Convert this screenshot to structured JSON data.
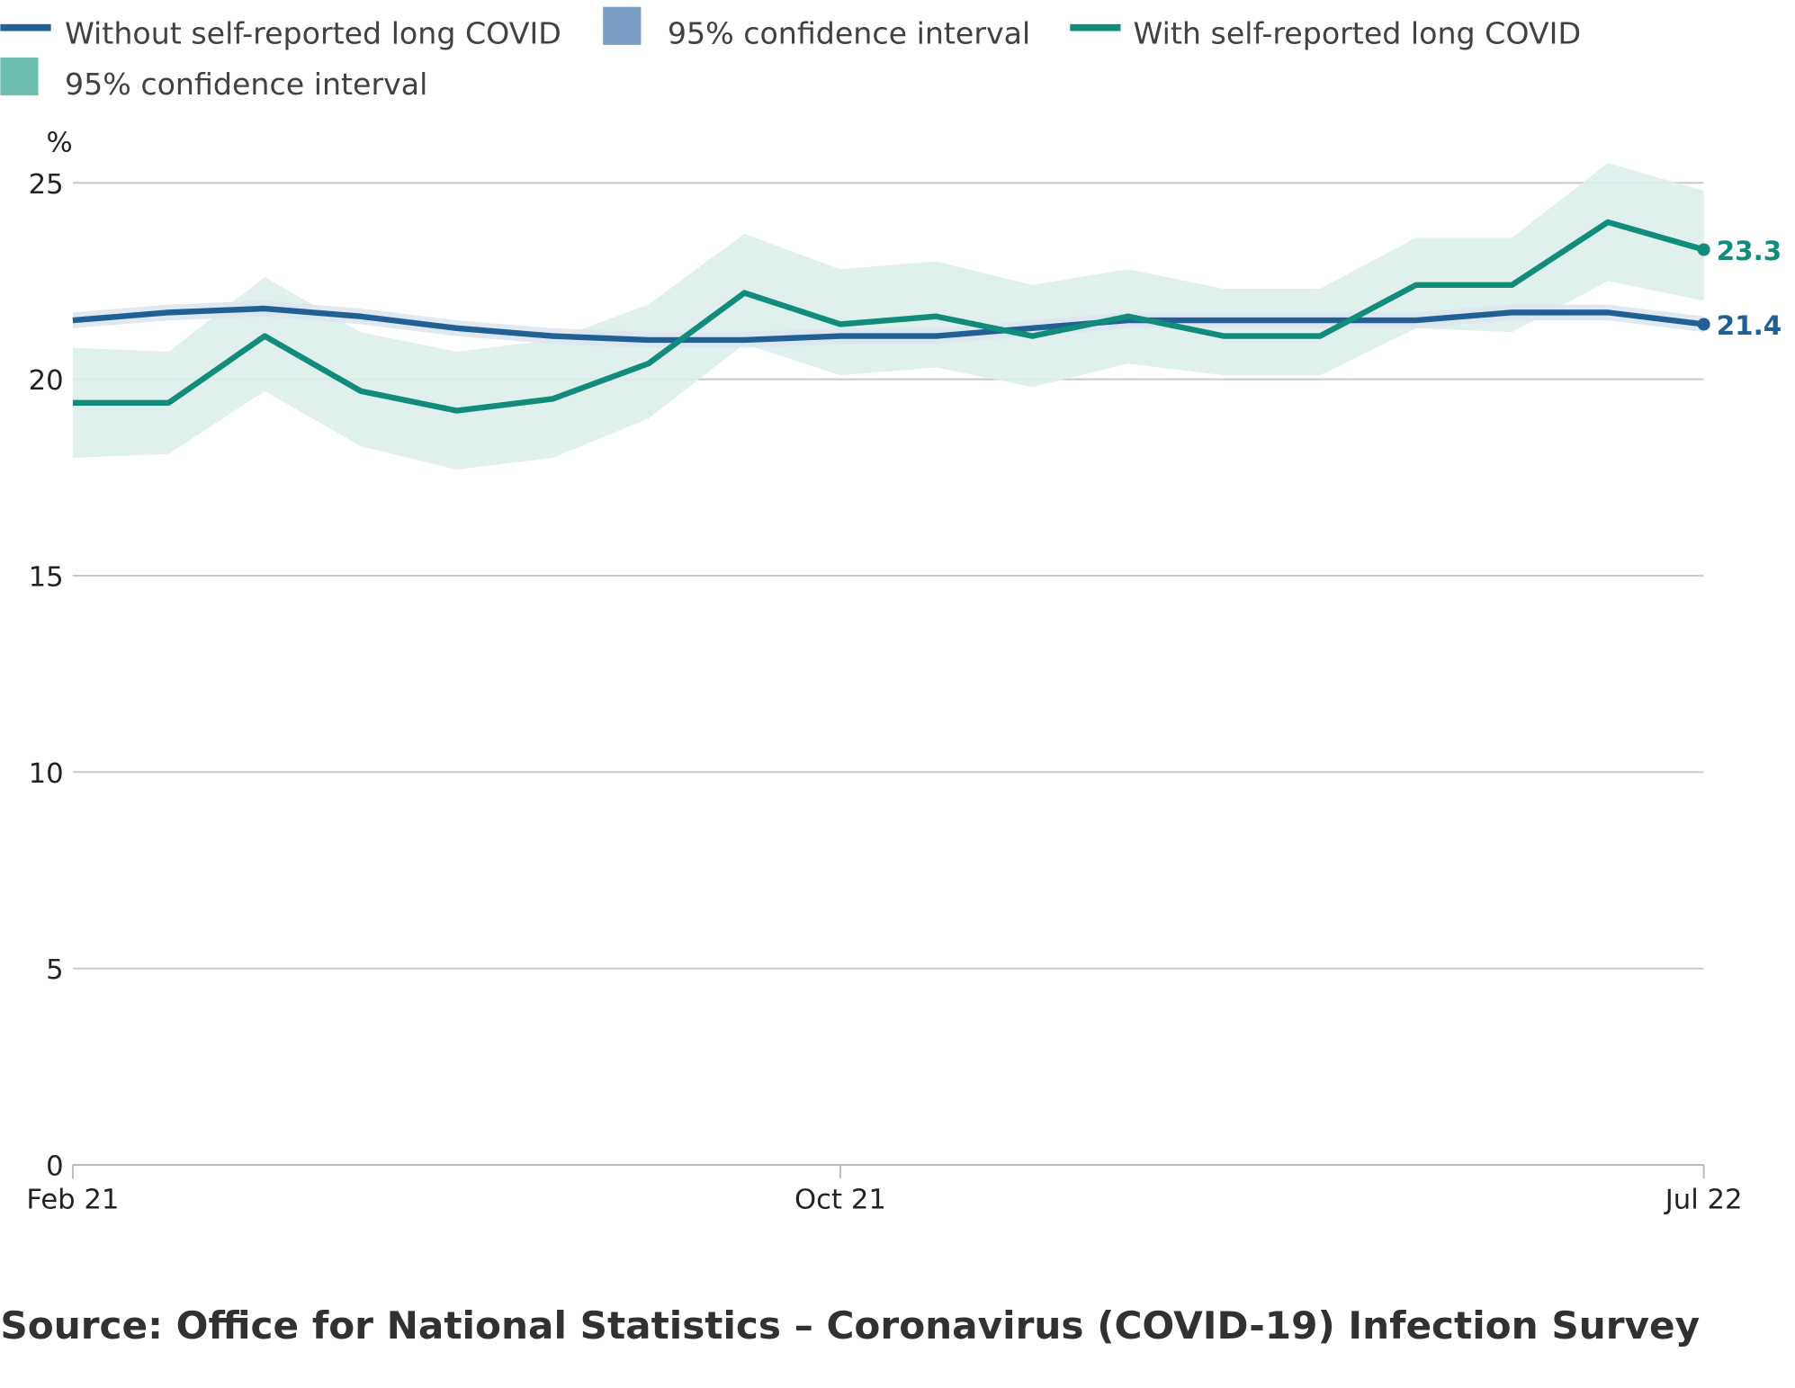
{
  "chart_data": {
    "type": "line",
    "ylabel": "%",
    "ylim": [
      0,
      25
    ],
    "yticks": [
      "0",
      "5",
      "10",
      "15",
      "20",
      "25"
    ],
    "grid": true,
    "legend_position": "top",
    "x": [
      "Feb 21",
      "Mar 21",
      "Apr 21",
      "May 21",
      "Jun 21",
      "Jul 21",
      "Aug 21",
      "Sep 21",
      "Oct 21",
      "Nov 21",
      "Dec 21",
      "Jan 22",
      "Feb 22",
      "Mar 22",
      "Apr 22",
      "May 22",
      "Jun 22",
      "Jul 22"
    ],
    "xtick_labels": [
      "Feb 21",
      "Oct 21",
      "Jul 22"
    ],
    "series": [
      {
        "name": "Without self-reported long COVID",
        "color": "#206095",
        "band_color": "#dde5ef",
        "values": [
          21.5,
          21.7,
          21.8,
          21.6,
          21.3,
          21.1,
          21.0,
          21.0,
          21.1,
          21.1,
          21.3,
          21.5,
          21.5,
          21.5,
          21.5,
          21.7,
          21.7,
          21.4
        ],
        "lower": [
          21.3,
          21.5,
          21.6,
          21.4,
          21.1,
          20.9,
          20.8,
          20.8,
          20.9,
          20.9,
          21.1,
          21.3,
          21.3,
          21.3,
          21.3,
          21.5,
          21.5,
          21.2
        ],
        "upper": [
          21.7,
          21.9,
          22.0,
          21.8,
          21.5,
          21.3,
          21.2,
          21.2,
          21.3,
          21.3,
          21.5,
          21.7,
          21.7,
          21.7,
          21.7,
          21.9,
          21.9,
          21.6
        ],
        "end_label": "21.4"
      },
      {
        "name": "With self-reported long COVID",
        "color": "#118c7b",
        "band_color": "#dbeeeb",
        "values": [
          19.4,
          19.4,
          21.1,
          19.7,
          19.2,
          19.5,
          20.4,
          22.2,
          21.4,
          21.6,
          21.1,
          21.6,
          21.1,
          21.1,
          22.4,
          22.4,
          24.0,
          23.3
        ],
        "lower": [
          18.0,
          18.1,
          19.7,
          18.3,
          17.7,
          18.0,
          19.0,
          20.9,
          20.1,
          20.3,
          19.8,
          20.4,
          20.1,
          20.1,
          21.3,
          21.2,
          22.5,
          22.0
        ],
        "upper": [
          20.8,
          20.7,
          22.6,
          21.2,
          20.7,
          21.0,
          21.9,
          23.7,
          22.8,
          23.0,
          22.4,
          22.8,
          22.3,
          22.3,
          23.6,
          23.6,
          25.5,
          24.8
        ],
        "end_label": "23.3"
      }
    ],
    "legend": [
      {
        "label": "Without self-reported long COVID",
        "kind": "line",
        "color": "#206095"
      },
      {
        "label": "95% confidence interval",
        "kind": "box",
        "color": "#7b9fc4"
      },
      {
        "label": "With self-reported long COVID",
        "kind": "line",
        "color": "#118c7b"
      },
      {
        "label": "95% confidence interval",
        "kind": "box",
        "color": "#6cbfae"
      }
    ]
  },
  "source": "Source: Office for National Statistics – Coronavirus (COVID-19) Infection Survey"
}
